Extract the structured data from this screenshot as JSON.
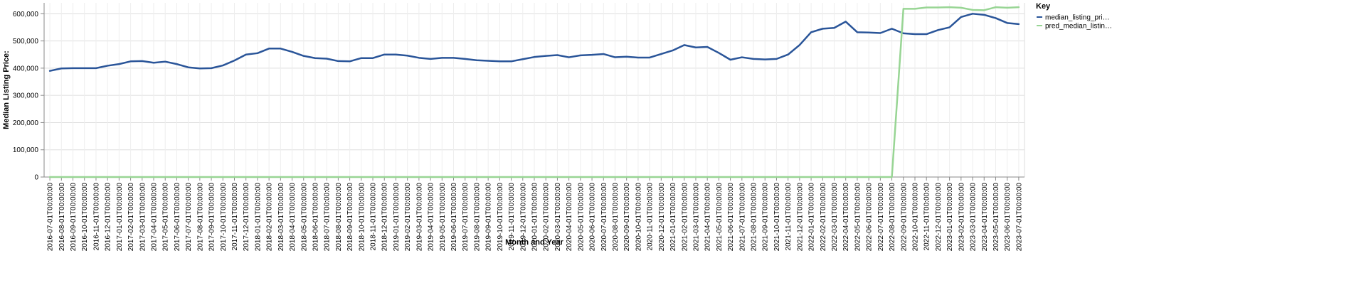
{
  "chart_data": {
    "type": "line",
    "xlabel": "Month and Year",
    "ylabel": "Median Listing Price:",
    "ylim": [
      0,
      640000
    ],
    "y_ticks": [
      0,
      100000,
      200000,
      300000,
      400000,
      500000,
      600000
    ],
    "y_tick_labels": [
      "0",
      "100,000",
      "200,000",
      "300,000",
      "400,000",
      "500,000",
      "600,000"
    ],
    "grid": true,
    "legend": {
      "title": "Key",
      "placement": "top-right"
    },
    "x": [
      "2016-07-01T00:00:00",
      "2016-08-01T00:00:00",
      "2016-09-01T00:00:00",
      "2016-10-01T00:00:00",
      "2016-11-01T00:00:00",
      "2016-12-01T00:00:00",
      "2017-01-01T00:00:00",
      "2017-02-01T00:00:00",
      "2017-03-01T00:00:00",
      "2017-04-01T00:00:00",
      "2017-05-01T00:00:00",
      "2017-06-01T00:00:00",
      "2017-07-01T00:00:00",
      "2017-08-01T00:00:00",
      "2017-09-01T00:00:00",
      "2017-10-01T00:00:00",
      "2017-11-01T00:00:00",
      "2017-12-01T00:00:00",
      "2018-01-01T00:00:00",
      "2018-02-01T00:00:00",
      "2018-03-01T00:00:00",
      "2018-04-01T00:00:00",
      "2018-05-01T00:00:00",
      "2018-06-01T00:00:00",
      "2018-07-01T00:00:00",
      "2018-08-01T00:00:00",
      "2018-09-01T00:00:00",
      "2018-10-01T00:00:00",
      "2018-11-01T00:00:00",
      "2018-12-01T00:00:00",
      "2019-01-01T00:00:00",
      "2019-02-01T00:00:00",
      "2019-03-01T00:00:00",
      "2019-04-01T00:00:00",
      "2019-05-01T00:00:00",
      "2019-06-01T00:00:00",
      "2019-07-01T00:00:00",
      "2019-08-01T00:00:00",
      "2019-09-01T00:00:00",
      "2019-10-01T00:00:00",
      "2019-11-01T00:00:00",
      "2019-12-01T00:00:00",
      "2020-01-01T00:00:00",
      "2020-02-01T00:00:00",
      "2020-03-01T00:00:00",
      "2020-04-01T00:00:00",
      "2020-05-01T00:00:00",
      "2020-06-01T00:00:00",
      "2020-07-01T00:00:00",
      "2020-08-01T00:00:00",
      "2020-09-01T00:00:00",
      "2020-10-01T00:00:00",
      "2020-11-01T00:00:00",
      "2020-12-01T00:00:00",
      "2021-01-01T00:00:00",
      "2021-02-01T00:00:00",
      "2021-03-01T00:00:00",
      "2021-04-01T00:00:00",
      "2021-05-01T00:00:00",
      "2021-06-01T00:00:00",
      "2021-07-01T00:00:00",
      "2021-08-01T00:00:00",
      "2021-09-01T00:00:00",
      "2021-10-01T00:00:00",
      "2021-11-01T00:00:00",
      "2021-12-01T00:00:00",
      "2022-01-01T00:00:00",
      "2022-02-01T00:00:00",
      "2022-03-01T00:00:00",
      "2022-04-01T00:00:00",
      "2022-05-01T00:00:00",
      "2022-06-01T00:00:00",
      "2022-07-01T00:00:00",
      "2022-08-01T00:00:00",
      "2022-09-01T00:00:00",
      "2022-10-01T00:00:00",
      "2022-11-01T00:00:00",
      "2022-12-01T00:00:00",
      "2023-01-01T00:00:00",
      "2023-02-01T00:00:00",
      "2023-03-01T00:00:00",
      "2023-04-01T00:00:00",
      "2023-05-01T00:00:00",
      "2023-06-01T00:00:00",
      "2023-07-01T00:00:00"
    ],
    "series": [
      {
        "name": "median_listing_pri…",
        "color": "#2a5599",
        "values": [
          390000,
          399000,
          399900,
          399900,
          400000,
          409000,
          415000,
          425000,
          426000,
          420000,
          424000,
          415000,
          403000,
          399000,
          400000,
          410000,
          428000,
          450000,
          455000,
          472000,
          472000,
          460000,
          445000,
          437000,
          435000,
          426000,
          425000,
          437000,
          437000,
          450000,
          450000,
          446000,
          438000,
          434000,
          438000,
          438000,
          434000,
          429000,
          427000,
          425000,
          425000,
          433000,
          441000,
          445000,
          448000,
          440000,
          447000,
          449000,
          452000,
          440000,
          442000,
          439000,
          439000,
          452000,
          465000,
          485000,
          476000,
          478000,
          456000,
          431000,
          440000,
          434000,
          432000,
          434000,
          450000,
          485000,
          532000,
          545000,
          548000,
          571000,
          532000,
          531000,
          529000,
          545000,
          528000,
          525000,
          525000,
          540000,
          550000,
          588000,
          600000,
          596000,
          584000,
          566000,
          562000
        ]
      },
      {
        "name": "pred_median_listin…",
        "color": "#98d594",
        "values": [
          0,
          0,
          0,
          0,
          0,
          0,
          0,
          0,
          0,
          0,
          0,
          0,
          0,
          0,
          0,
          0,
          0,
          0,
          0,
          0,
          0,
          0,
          0,
          0,
          0,
          0,
          0,
          0,
          0,
          0,
          0,
          0,
          0,
          0,
          0,
          0,
          0,
          0,
          0,
          0,
          0,
          0,
          0,
          0,
          0,
          0,
          0,
          0,
          0,
          0,
          0,
          0,
          0,
          0,
          0,
          0,
          0,
          0,
          0,
          0,
          0,
          0,
          0,
          0,
          0,
          0,
          0,
          0,
          0,
          0,
          0,
          0,
          0,
          0,
          618000,
          618000,
          623000,
          623000,
          624000,
          622000,
          614000,
          613000,
          624000,
          622000,
          624000
        ]
      }
    ]
  }
}
